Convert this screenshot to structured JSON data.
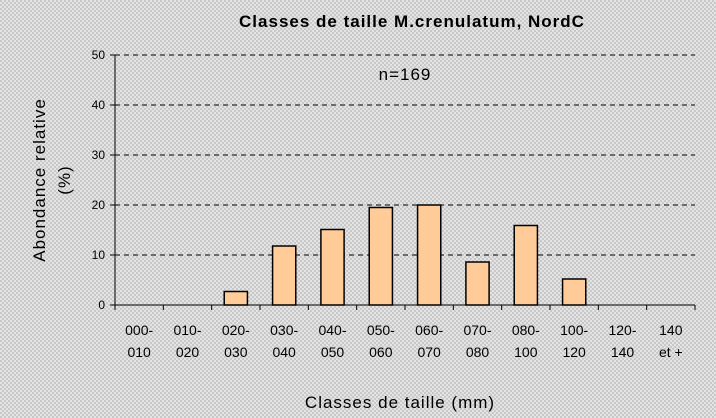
{
  "chart_data": {
    "type": "bar",
    "title": "Classes de taille M.crenulatum, NordC",
    "annotation": "n=169",
    "x_label": "Classes de taille (mm)",
    "y_label": [
      "Abondance relative",
      "(%)"
    ],
    "categories": [
      "000-\n010",
      "010-\n020",
      "020-\n030",
      "030-\n040",
      "040-\n050",
      "050-\n060",
      "060-\n070",
      "070-\n080",
      "080-\n100",
      "100-\n120",
      "120-\n140",
      "140\net +"
    ],
    "values": [
      0,
      0,
      2.7,
      11.8,
      15.1,
      19.5,
      20,
      8.6,
      15.9,
      5.2,
      0,
      0
    ],
    "color": "#ffcc99",
    "ylim": [
      0,
      50
    ],
    "yticks": [
      0,
      10,
      20,
      30,
      40,
      50
    ],
    "grid": true
  }
}
